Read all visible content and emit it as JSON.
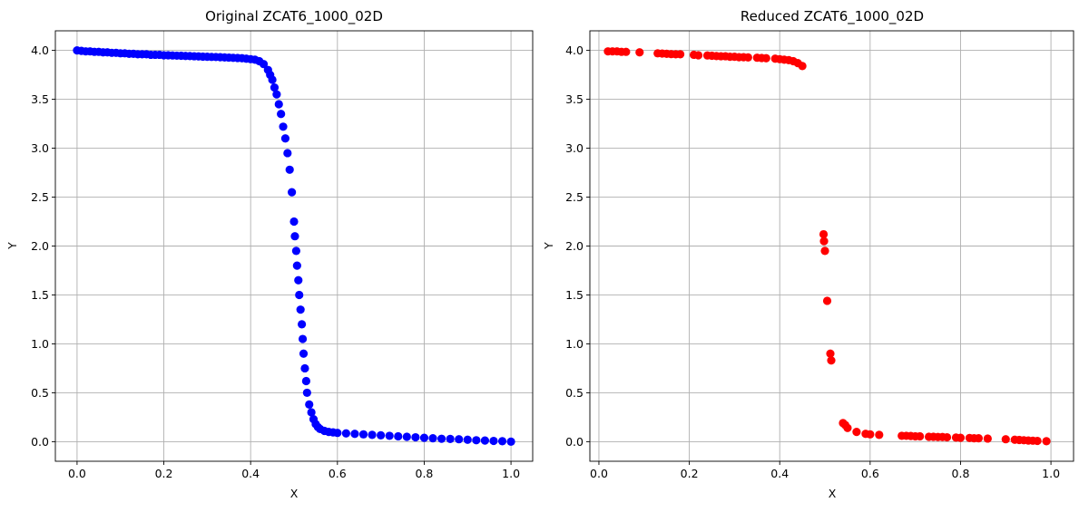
{
  "chart_data": [
    {
      "type": "scatter",
      "title": "Original ZCAT6_1000_02D",
      "xlabel": "X",
      "ylabel": "Y",
      "xlim": [
        -0.05,
        1.05
      ],
      "ylim": [
        -0.2,
        4.2
      ],
      "xticks": [
        0.0,
        0.2,
        0.4,
        0.6,
        0.8,
        1.0
      ],
      "xtick_labels": [
        "0.0",
        "0.2",
        "0.4",
        "0.6",
        "0.8",
        "1.0"
      ],
      "yticks": [
        0.0,
        0.5,
        1.0,
        1.5,
        2.0,
        2.5,
        3.0,
        3.5,
        4.0
      ],
      "ytick_labels": [
        "0.0",
        "0.5",
        "1.0",
        "1.5",
        "2.0",
        "2.5",
        "3.0",
        "3.5",
        "4.0"
      ],
      "grid": true,
      "color": "#0000ff",
      "points": [
        [
          0.0,
          4.0
        ],
        [
          0.01,
          3.995
        ],
        [
          0.02,
          3.99
        ],
        [
          0.03,
          3.99
        ],
        [
          0.04,
          3.985
        ],
        [
          0.05,
          3.985
        ],
        [
          0.06,
          3.98
        ],
        [
          0.07,
          3.98
        ],
        [
          0.08,
          3.975
        ],
        [
          0.09,
          3.975
        ],
        [
          0.1,
          3.97
        ],
        [
          0.11,
          3.97
        ],
        [
          0.12,
          3.965
        ],
        [
          0.13,
          3.965
        ],
        [
          0.14,
          3.96
        ],
        [
          0.15,
          3.96
        ],
        [
          0.16,
          3.96
        ],
        [
          0.17,
          3.955
        ],
        [
          0.18,
          3.955
        ],
        [
          0.19,
          3.955
        ],
        [
          0.2,
          3.95
        ],
        [
          0.21,
          3.95
        ],
        [
          0.22,
          3.948
        ],
        [
          0.23,
          3.946
        ],
        [
          0.24,
          3.945
        ],
        [
          0.25,
          3.943
        ],
        [
          0.26,
          3.942
        ],
        [
          0.27,
          3.94
        ],
        [
          0.28,
          3.938
        ],
        [
          0.29,
          3.936
        ],
        [
          0.3,
          3.935
        ],
        [
          0.31,
          3.933
        ],
        [
          0.32,
          3.932
        ],
        [
          0.33,
          3.93
        ],
        [
          0.34,
          3.928
        ],
        [
          0.35,
          3.926
        ],
        [
          0.36,
          3.924
        ],
        [
          0.37,
          3.922
        ],
        [
          0.38,
          3.92
        ],
        [
          0.39,
          3.915
        ],
        [
          0.4,
          3.91
        ],
        [
          0.41,
          3.905
        ],
        [
          0.42,
          3.89
        ],
        [
          0.43,
          3.86
        ],
        [
          0.44,
          3.8
        ],
        [
          0.445,
          3.75
        ],
        [
          0.45,
          3.7
        ],
        [
          0.455,
          3.62
        ],
        [
          0.46,
          3.55
        ],
        [
          0.465,
          3.45
        ],
        [
          0.47,
          3.35
        ],
        [
          0.475,
          3.22
        ],
        [
          0.48,
          3.1
        ],
        [
          0.485,
          2.95
        ],
        [
          0.49,
          2.78
        ],
        [
          0.495,
          2.55
        ],
        [
          0.5,
          2.25
        ],
        [
          0.502,
          2.1
        ],
        [
          0.505,
          1.95
        ],
        [
          0.507,
          1.8
        ],
        [
          0.51,
          1.65
        ],
        [
          0.512,
          1.5
        ],
        [
          0.515,
          1.35
        ],
        [
          0.518,
          1.2
        ],
        [
          0.52,
          1.05
        ],
        [
          0.522,
          0.9
        ],
        [
          0.525,
          0.75
        ],
        [
          0.528,
          0.62
        ],
        [
          0.53,
          0.5
        ],
        [
          0.535,
          0.38
        ],
        [
          0.54,
          0.3
        ],
        [
          0.545,
          0.23
        ],
        [
          0.55,
          0.18
        ],
        [
          0.555,
          0.15
        ],
        [
          0.56,
          0.13
        ],
        [
          0.57,
          0.11
        ],
        [
          0.58,
          0.1
        ],
        [
          0.59,
          0.095
        ],
        [
          0.6,
          0.09
        ],
        [
          0.62,
          0.085
        ],
        [
          0.64,
          0.08
        ],
        [
          0.66,
          0.075
        ],
        [
          0.68,
          0.07
        ],
        [
          0.7,
          0.065
        ],
        [
          0.72,
          0.06
        ],
        [
          0.74,
          0.055
        ],
        [
          0.76,
          0.05
        ],
        [
          0.78,
          0.045
        ],
        [
          0.8,
          0.04
        ],
        [
          0.82,
          0.035
        ],
        [
          0.84,
          0.03
        ],
        [
          0.86,
          0.028
        ],
        [
          0.88,
          0.025
        ],
        [
          0.9,
          0.02
        ],
        [
          0.92,
          0.015
        ],
        [
          0.94,
          0.012
        ],
        [
          0.96,
          0.008
        ],
        [
          0.98,
          0.005
        ],
        [
          1.0,
          0.0
        ]
      ]
    },
    {
      "type": "scatter",
      "title": "Reduced ZCAT6_1000_02D",
      "xlabel": "X",
      "ylabel": "Y",
      "xlim": [
        -0.02,
        1.05
      ],
      "ylim": [
        -0.2,
        4.2
      ],
      "xticks": [
        0.0,
        0.2,
        0.4,
        0.6,
        0.8,
        1.0
      ],
      "xtick_labels": [
        "0.0",
        "0.2",
        "0.4",
        "0.6",
        "0.8",
        "1.0"
      ],
      "yticks": [
        0.0,
        0.5,
        1.0,
        1.5,
        2.0,
        2.5,
        3.0,
        3.5,
        4.0
      ],
      "ytick_labels": [
        "0.0",
        "0.5",
        "1.0",
        "1.5",
        "2.0",
        "2.5",
        "3.0",
        "3.5",
        "4.0"
      ],
      "grid": true,
      "color": "#ff0000",
      "points": [
        [
          0.02,
          3.99
        ],
        [
          0.03,
          3.99
        ],
        [
          0.04,
          3.99
        ],
        [
          0.05,
          3.985
        ],
        [
          0.06,
          3.985
        ],
        [
          0.09,
          3.98
        ],
        [
          0.13,
          3.97
        ],
        [
          0.14,
          3.968
        ],
        [
          0.15,
          3.965
        ],
        [
          0.16,
          3.962
        ],
        [
          0.17,
          3.96
        ],
        [
          0.18,
          3.96
        ],
        [
          0.21,
          3.955
        ],
        [
          0.22,
          3.95
        ],
        [
          0.24,
          3.948
        ],
        [
          0.25,
          3.945
        ],
        [
          0.26,
          3.942
        ],
        [
          0.27,
          3.94
        ],
        [
          0.28,
          3.94
        ],
        [
          0.29,
          3.935
        ],
        [
          0.3,
          3.935
        ],
        [
          0.31,
          3.93
        ],
        [
          0.32,
          3.93
        ],
        [
          0.33,
          3.928
        ],
        [
          0.35,
          3.925
        ],
        [
          0.36,
          3.922
        ],
        [
          0.37,
          3.92
        ],
        [
          0.39,
          3.915
        ],
        [
          0.4,
          3.91
        ],
        [
          0.41,
          3.905
        ],
        [
          0.42,
          3.9
        ],
        [
          0.43,
          3.89
        ],
        [
          0.44,
          3.87
        ],
        [
          0.45,
          3.84
        ],
        [
          0.497,
          2.12
        ],
        [
          0.498,
          2.05
        ],
        [
          0.5,
          1.95
        ],
        [
          0.505,
          1.44
        ],
        [
          0.512,
          0.9
        ],
        [
          0.514,
          0.83
        ],
        [
          0.54,
          0.19
        ],
        [
          0.545,
          0.17
        ],
        [
          0.55,
          0.14
        ],
        [
          0.57,
          0.1
        ],
        [
          0.59,
          0.08
        ],
        [
          0.6,
          0.075
        ],
        [
          0.62,
          0.07
        ],
        [
          0.67,
          0.06
        ],
        [
          0.68,
          0.06
        ],
        [
          0.69,
          0.058
        ],
        [
          0.7,
          0.055
        ],
        [
          0.71,
          0.055
        ],
        [
          0.73,
          0.05
        ],
        [
          0.74,
          0.05
        ],
        [
          0.75,
          0.048
        ],
        [
          0.76,
          0.048
        ],
        [
          0.77,
          0.045
        ],
        [
          0.79,
          0.042
        ],
        [
          0.8,
          0.04
        ],
        [
          0.82,
          0.038
        ],
        [
          0.83,
          0.035
        ],
        [
          0.84,
          0.035
        ],
        [
          0.86,
          0.032
        ],
        [
          0.9,
          0.025
        ],
        [
          0.92,
          0.02
        ],
        [
          0.93,
          0.018
        ],
        [
          0.94,
          0.015
        ],
        [
          0.95,
          0.012
        ],
        [
          0.96,
          0.01
        ],
        [
          0.97,
          0.008
        ],
        [
          0.99,
          0.005
        ]
      ]
    }
  ]
}
